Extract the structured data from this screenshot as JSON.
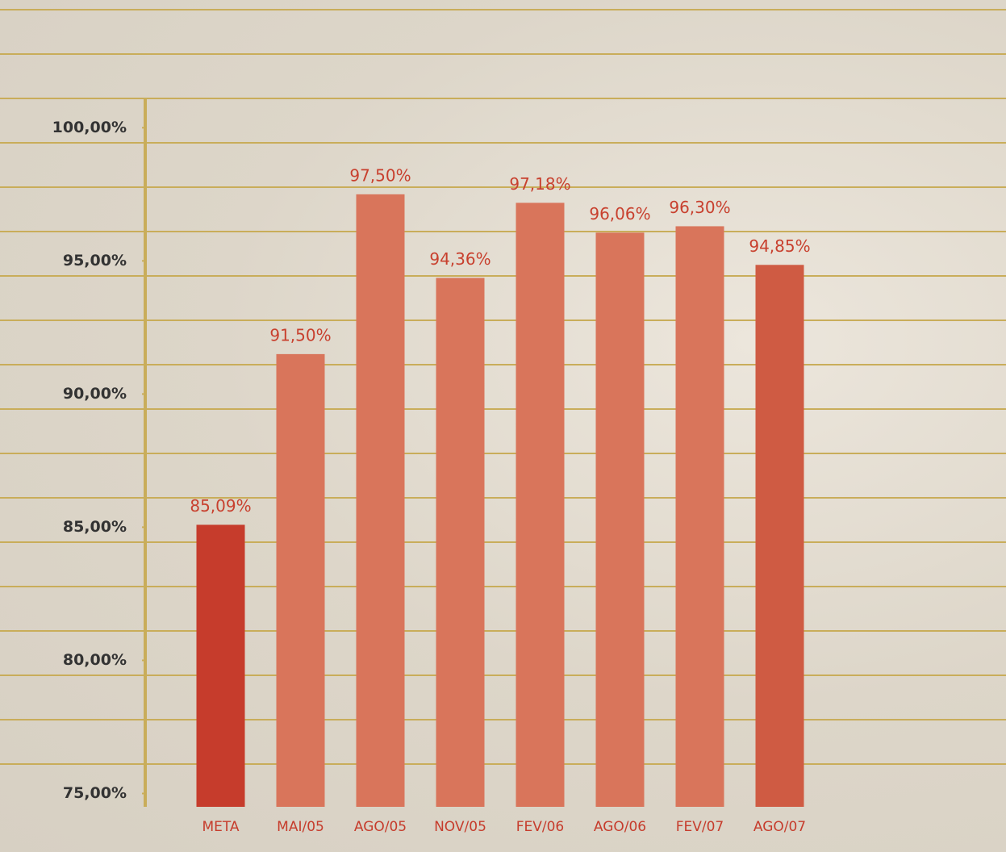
{
  "chart_data": {
    "type": "bar",
    "categories": [
      "META",
      "MAI/05",
      "AGO/05",
      "NOV/05",
      "FEV/06",
      "AGO/06",
      "FEV/07",
      "AGO/07"
    ],
    "values": [
      85.09,
      91.5,
      97.5,
      94.36,
      97.18,
      96.06,
      96.3,
      94.85
    ],
    "value_labels": [
      "85,09%",
      "91,50%",
      "97,50%",
      "94,36%",
      "97,18%",
      "96,06%",
      "96,30%",
      "94,85%"
    ],
    "colors": [
      "#c63c2c",
      "#d9755b",
      "#d9755b",
      "#d9755b",
      "#d9755b",
      "#d9755b",
      "#d9755b",
      "#cf5b43"
    ],
    "ylim": [
      74.5,
      101.1
    ],
    "yticks": [
      {
        "value": 75,
        "label": "75,00%"
      },
      {
        "value": 80,
        "label": "80,00%"
      },
      {
        "value": 85,
        "label": "85,00%"
      },
      {
        "value": 90,
        "label": "90,00%"
      },
      {
        "value": 95,
        "label": "95,00%"
      },
      {
        "value": 100,
        "label": "100,00%"
      }
    ]
  }
}
